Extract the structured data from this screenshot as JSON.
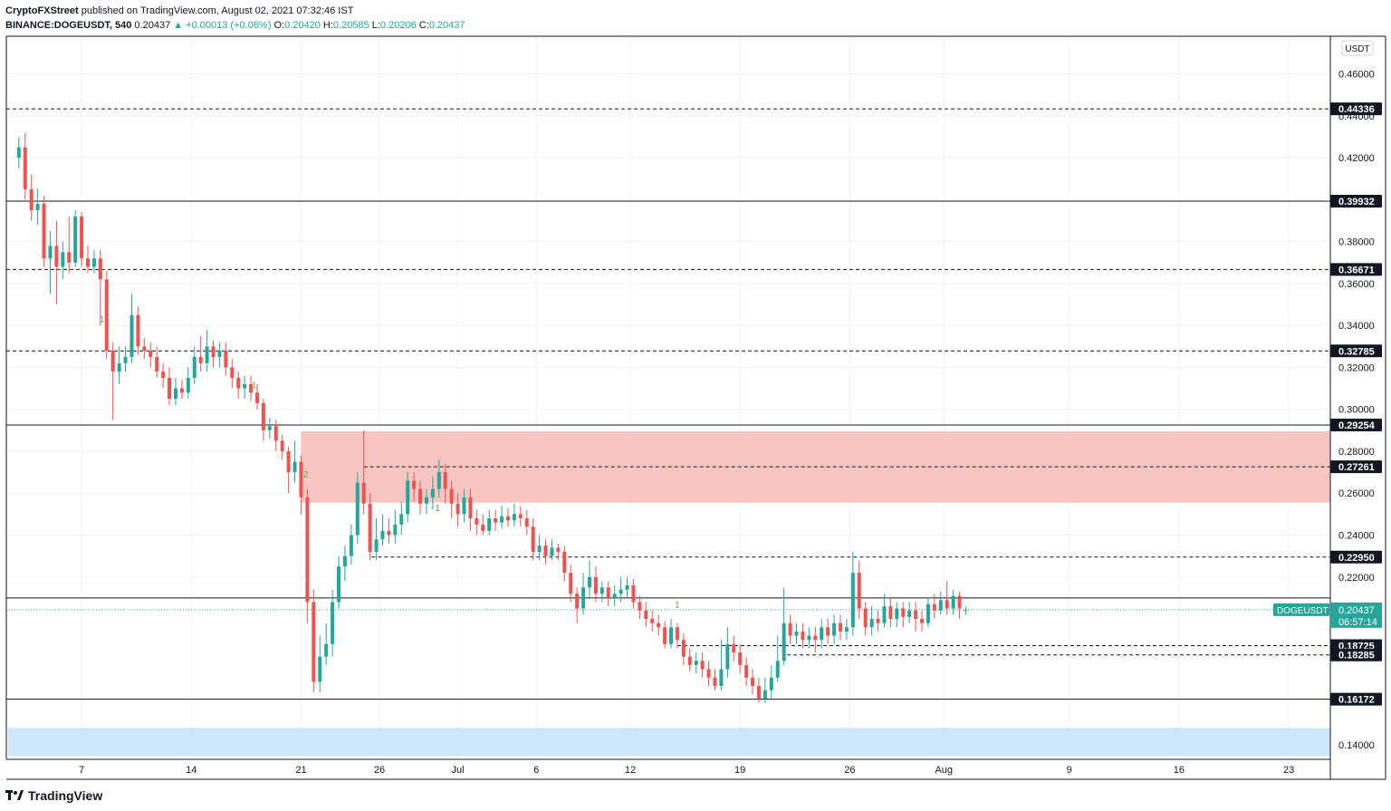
{
  "header": {
    "author": "CryptoFXStreet",
    "published": "published on TradingView.com, August 02, 2021 07:32:46 IST",
    "symbol": "BINANCE:DOGEUSDT, 540",
    "last": "0.20437",
    "change": "▲ +0.00013 (+0.06%)",
    "o_label": "O:",
    "o_value": "0.20420",
    "h_label": "H:",
    "h_value": "0.20585",
    "l_label": "L:",
    "l_value": "0.20206",
    "c_label": "C:",
    "c_value": "0.20437"
  },
  "footer": {
    "brand": "TradingView"
  },
  "chart_data": {
    "type": "candlestick",
    "currency_label": "USDT",
    "ylim": [
      0.133,
      0.478
    ],
    "y_ticks": [
      "0.46000",
      "0.44000",
      "0.42000",
      "0.38000",
      "0.36000",
      "0.34000",
      "0.32000",
      "0.30000",
      "0.28000",
      "0.26000",
      "0.24000",
      "0.22000",
      "0.14000"
    ],
    "x_tick_labels": [
      {
        "label": "7",
        "day": 7
      },
      {
        "label": "14",
        "day": 14
      },
      {
        "label": "21",
        "day": 21
      },
      {
        "label": "26",
        "day": 26
      },
      {
        "label": "Jul",
        "day": 31
      },
      {
        "label": "6",
        "day": 36
      },
      {
        "label": "12",
        "day": 42
      },
      {
        "label": "19",
        "day": 49
      },
      {
        "label": "26",
        "day": 56
      },
      {
        "label": "Aug",
        "day": 62
      },
      {
        "label": "9",
        "day": 70
      },
      {
        "label": "16",
        "day": 77
      },
      {
        "label": "23",
        "day": 84
      }
    ],
    "levels": [
      {
        "value": 0.44336,
        "label": "0.44336",
        "style": "dashed"
      },
      {
        "value": 0.39932,
        "label": "0.39932",
        "style": "solid"
      },
      {
        "value": 0.36671,
        "label": "0.36671",
        "style": "dashed"
      },
      {
        "value": 0.32785,
        "label": "0.32785",
        "style": "dashed"
      },
      {
        "value": 0.29254,
        "label": "0.29254",
        "style": "solid"
      },
      {
        "value": 0.27261,
        "label": "0.27261",
        "style": "dashed",
        "from_day": 25
      },
      {
        "value": 0.2295,
        "label": "0.22950",
        "style": "dashed",
        "from_day": 25.5
      },
      {
        "value": 0.21,
        "label": "",
        "style": "solid"
      },
      {
        "value": 0.18725,
        "label": "0.18725",
        "style": "dashed",
        "from_day": 45
      },
      {
        "value": 0.18285,
        "label": "0.18285",
        "style": "dashed",
        "from_day": 52
      },
      {
        "value": 0.16172,
        "label": "0.16172",
        "style": "solid"
      }
    ],
    "zones": [
      {
        "from": 0.2555,
        "to": 0.2895,
        "color": "#f7c5c2",
        "start_day": 21
      },
      {
        "from": 0.1345,
        "to": 0.148,
        "color": "#cfe6fb",
        "start_day": 2.3
      }
    ],
    "current": {
      "symbol": "DOGEUSDT",
      "price": "0.20437",
      "countdown": "06:57:14",
      "value": 0.20437
    },
    "markers": [
      {
        "label": "1",
        "day": 8.3,
        "value": 0.3415
      },
      {
        "label": "1",
        "day": 18.0,
        "value": 0.31
      },
      {
        "label": "2",
        "day": 21.3,
        "value": 0.2675
      },
      {
        "label": "1",
        "day": 29.7,
        "value": 0.2515
      },
      {
        "label": "1",
        "day": 45.0,
        "value": 0.2055
      }
    ],
    "candles": [
      [
        3.0,
        0.42,
        0.425,
        0.43,
        0.415
      ],
      [
        3.4,
        0.425,
        0.405,
        0.432,
        0.4
      ],
      [
        3.8,
        0.405,
        0.395,
        0.412,
        0.39
      ],
      [
        4.2,
        0.395,
        0.398,
        0.405,
        0.388
      ],
      [
        4.6,
        0.398,
        0.372,
        0.402,
        0.368
      ],
      [
        5.0,
        0.372,
        0.378,
        0.385,
        0.355
      ],
      [
        5.4,
        0.378,
        0.368,
        0.39,
        0.35
      ],
      [
        5.8,
        0.368,
        0.375,
        0.38,
        0.362
      ],
      [
        6.2,
        0.375,
        0.37,
        0.392,
        0.365
      ],
      [
        6.6,
        0.37,
        0.392,
        0.395,
        0.368
      ],
      [
        7.0,
        0.392,
        0.372,
        0.394,
        0.368
      ],
      [
        7.4,
        0.372,
        0.368,
        0.378,
        0.365
      ],
      [
        7.8,
        0.368,
        0.372,
        0.376,
        0.365
      ],
      [
        8.2,
        0.372,
        0.362,
        0.376,
        0.34
      ],
      [
        8.6,
        0.362,
        0.328,
        0.366,
        0.324
      ],
      [
        9.0,
        0.328,
        0.318,
        0.332,
        0.295
      ],
      [
        9.4,
        0.318,
        0.322,
        0.33,
        0.312
      ],
      [
        9.8,
        0.322,
        0.325,
        0.33,
        0.318
      ],
      [
        10.2,
        0.325,
        0.345,
        0.355,
        0.322
      ],
      [
        10.6,
        0.345,
        0.33,
        0.349,
        0.326
      ],
      [
        11.0,
        0.33,
        0.328,
        0.334,
        0.324
      ],
      [
        11.4,
        0.328,
        0.325,
        0.332,
        0.32
      ],
      [
        11.8,
        0.325,
        0.318,
        0.33,
        0.315
      ],
      [
        12.2,
        0.318,
        0.315,
        0.322,
        0.31
      ],
      [
        12.6,
        0.315,
        0.305,
        0.32,
        0.302
      ],
      [
        13.0,
        0.305,
        0.31,
        0.315,
        0.302
      ],
      [
        13.4,
        0.31,
        0.308,
        0.314,
        0.305
      ],
      [
        13.8,
        0.308,
        0.315,
        0.32,
        0.305
      ],
      [
        14.2,
        0.315,
        0.325,
        0.33,
        0.312
      ],
      [
        14.6,
        0.325,
        0.322,
        0.335,
        0.318
      ],
      [
        15.0,
        0.322,
        0.33,
        0.338,
        0.318
      ],
      [
        15.4,
        0.33,
        0.325,
        0.333,
        0.32
      ],
      [
        15.8,
        0.325,
        0.328,
        0.332,
        0.32
      ],
      [
        16.2,
        0.328,
        0.32,
        0.332,
        0.316
      ],
      [
        16.6,
        0.32,
        0.315,
        0.324,
        0.31
      ],
      [
        17.0,
        0.315,
        0.31,
        0.318,
        0.305
      ],
      [
        17.4,
        0.31,
        0.312,
        0.316,
        0.305
      ],
      [
        17.8,
        0.312,
        0.308,
        0.316,
        0.304
      ],
      [
        18.2,
        0.308,
        0.303,
        0.312,
        0.3
      ],
      [
        18.6,
        0.303,
        0.29,
        0.305,
        0.285
      ],
      [
        19.0,
        0.29,
        0.292,
        0.296,
        0.286
      ],
      [
        19.4,
        0.292,
        0.285,
        0.295,
        0.28
      ],
      [
        19.8,
        0.285,
        0.28,
        0.288,
        0.276
      ],
      [
        20.2,
        0.28,
        0.27,
        0.282,
        0.26
      ],
      [
        20.6,
        0.27,
        0.275,
        0.285,
        0.265
      ],
      [
        21.0,
        0.275,
        0.258,
        0.278,
        0.25
      ],
      [
        21.4,
        0.258,
        0.208,
        0.262,
        0.198
      ],
      [
        21.8,
        0.208,
        0.17,
        0.214,
        0.165
      ],
      [
        22.2,
        0.17,
        0.182,
        0.192,
        0.165
      ],
      [
        22.6,
        0.182,
        0.188,
        0.198,
        0.178
      ],
      [
        23.0,
        0.188,
        0.208,
        0.214,
        0.182
      ],
      [
        23.4,
        0.208,
        0.225,
        0.23,
        0.205
      ],
      [
        23.8,
        0.225,
        0.23,
        0.235,
        0.218
      ],
      [
        24.2,
        0.23,
        0.24,
        0.245,
        0.226
      ],
      [
        24.6,
        0.24,
        0.265,
        0.27,
        0.236
      ],
      [
        25.0,
        0.265,
        0.255,
        0.29,
        0.25
      ],
      [
        25.4,
        0.255,
        0.232,
        0.26,
        0.228
      ],
      [
        25.8,
        0.232,
        0.238,
        0.248,
        0.228
      ],
      [
        26.2,
        0.238,
        0.242,
        0.25,
        0.235
      ],
      [
        26.6,
        0.242,
        0.24,
        0.248,
        0.236
      ],
      [
        27.0,
        0.24,
        0.245,
        0.252,
        0.236
      ],
      [
        27.4,
        0.245,
        0.25,
        0.256,
        0.24
      ],
      [
        27.8,
        0.25,
        0.266,
        0.27,
        0.246
      ],
      [
        28.2,
        0.266,
        0.262,
        0.27,
        0.256
      ],
      [
        28.6,
        0.262,
        0.255,
        0.266,
        0.25
      ],
      [
        29.0,
        0.255,
        0.258,
        0.262,
        0.25
      ],
      [
        29.4,
        0.258,
        0.262,
        0.268,
        0.252
      ],
      [
        29.8,
        0.262,
        0.27,
        0.276,
        0.258
      ],
      [
        30.2,
        0.27,
        0.262,
        0.274,
        0.255
      ],
      [
        30.6,
        0.262,
        0.255,
        0.266,
        0.248
      ],
      [
        31.0,
        0.255,
        0.25,
        0.26,
        0.244
      ],
      [
        31.4,
        0.25,
        0.258,
        0.262,
        0.246
      ],
      [
        31.8,
        0.258,
        0.248,
        0.262,
        0.242
      ],
      [
        32.2,
        0.248,
        0.245,
        0.252,
        0.24
      ],
      [
        32.6,
        0.245,
        0.242,
        0.25,
        0.24
      ],
      [
        33.0,
        0.242,
        0.248,
        0.252,
        0.24
      ],
      [
        33.4,
        0.248,
        0.246,
        0.252,
        0.242
      ],
      [
        33.8,
        0.246,
        0.249,
        0.254,
        0.243
      ],
      [
        34.2,
        0.249,
        0.247,
        0.253,
        0.244
      ],
      [
        34.6,
        0.247,
        0.25,
        0.255,
        0.244
      ],
      [
        35.0,
        0.25,
        0.248,
        0.254,
        0.244
      ],
      [
        35.4,
        0.248,
        0.244,
        0.252,
        0.24
      ],
      [
        35.8,
        0.244,
        0.232,
        0.248,
        0.228
      ],
      [
        36.2,
        0.232,
        0.235,
        0.24,
        0.228
      ],
      [
        36.6,
        0.235,
        0.23,
        0.238,
        0.226
      ],
      [
        37.0,
        0.23,
        0.234,
        0.238,
        0.228
      ],
      [
        37.4,
        0.234,
        0.232,
        0.236,
        0.228
      ],
      [
        37.8,
        0.232,
        0.222,
        0.235,
        0.218
      ],
      [
        38.2,
        0.222,
        0.212,
        0.226,
        0.208
      ],
      [
        38.6,
        0.212,
        0.205,
        0.215,
        0.198
      ],
      [
        39.0,
        0.205,
        0.215,
        0.222,
        0.202
      ],
      [
        39.4,
        0.215,
        0.22,
        0.228,
        0.21
      ],
      [
        39.8,
        0.22,
        0.212,
        0.225,
        0.208
      ],
      [
        40.2,
        0.212,
        0.215,
        0.218,
        0.208
      ],
      [
        40.6,
        0.215,
        0.21,
        0.218,
        0.206
      ],
      [
        41.0,
        0.21,
        0.212,
        0.216,
        0.206
      ],
      [
        41.4,
        0.212,
        0.214,
        0.22,
        0.208
      ],
      [
        41.8,
        0.214,
        0.216,
        0.22,
        0.21
      ],
      [
        42.2,
        0.216,
        0.208,
        0.219,
        0.205
      ],
      [
        42.6,
        0.208,
        0.204,
        0.211,
        0.2
      ],
      [
        43.0,
        0.204,
        0.2,
        0.208,
        0.196
      ],
      [
        43.4,
        0.2,
        0.198,
        0.204,
        0.194
      ],
      [
        43.8,
        0.198,
        0.196,
        0.202,
        0.192
      ],
      [
        44.2,
        0.196,
        0.188,
        0.199,
        0.186
      ],
      [
        44.6,
        0.188,
        0.196,
        0.2,
        0.186
      ],
      [
        45.0,
        0.196,
        0.19,
        0.198,
        0.186
      ],
      [
        45.4,
        0.19,
        0.182,
        0.193,
        0.178
      ],
      [
        45.8,
        0.182,
        0.178,
        0.186,
        0.175
      ],
      [
        46.2,
        0.178,
        0.18,
        0.184,
        0.174
      ],
      [
        46.6,
        0.18,
        0.176,
        0.184,
        0.172
      ],
      [
        47.0,
        0.176,
        0.172,
        0.18,
        0.168
      ],
      [
        47.4,
        0.172,
        0.168,
        0.176,
        0.166
      ],
      [
        47.8,
        0.168,
        0.176,
        0.19,
        0.166
      ],
      [
        48.2,
        0.176,
        0.188,
        0.196,
        0.172
      ],
      [
        48.6,
        0.188,
        0.184,
        0.192,
        0.18
      ],
      [
        49.0,
        0.184,
        0.178,
        0.188,
        0.174
      ],
      [
        49.4,
        0.178,
        0.172,
        0.182,
        0.168
      ],
      [
        49.8,
        0.172,
        0.168,
        0.176,
        0.164
      ],
      [
        50.2,
        0.168,
        0.162,
        0.172,
        0.16
      ],
      [
        50.6,
        0.162,
        0.166,
        0.172,
        0.16
      ],
      [
        51.0,
        0.166,
        0.172,
        0.178,
        0.162
      ],
      [
        51.4,
        0.172,
        0.18,
        0.192,
        0.17
      ],
      [
        51.8,
        0.18,
        0.198,
        0.215,
        0.178
      ],
      [
        52.2,
        0.198,
        0.192,
        0.202,
        0.188
      ],
      [
        52.6,
        0.192,
        0.194,
        0.198,
        0.188
      ],
      [
        53.0,
        0.194,
        0.19,
        0.198,
        0.186
      ],
      [
        53.4,
        0.19,
        0.192,
        0.196,
        0.186
      ],
      [
        53.8,
        0.192,
        0.19,
        0.196,
        0.184
      ],
      [
        54.2,
        0.19,
        0.196,
        0.2,
        0.186
      ],
      [
        54.6,
        0.196,
        0.192,
        0.2,
        0.188
      ],
      [
        55.0,
        0.192,
        0.198,
        0.202,
        0.188
      ],
      [
        55.4,
        0.198,
        0.194,
        0.202,
        0.19
      ],
      [
        55.8,
        0.194,
        0.196,
        0.2,
        0.19
      ],
      [
        56.2,
        0.196,
        0.222,
        0.232,
        0.192
      ],
      [
        56.6,
        0.222,
        0.205,
        0.228,
        0.2
      ],
      [
        57.0,
        0.205,
        0.196,
        0.208,
        0.192
      ],
      [
        57.4,
        0.196,
        0.2,
        0.206,
        0.192
      ],
      [
        57.8,
        0.2,
        0.198,
        0.204,
        0.194
      ],
      [
        58.2,
        0.198,
        0.206,
        0.212,
        0.196
      ],
      [
        58.6,
        0.206,
        0.2,
        0.21,
        0.196
      ],
      [
        59.0,
        0.2,
        0.205,
        0.208,
        0.196
      ],
      [
        59.4,
        0.205,
        0.201,
        0.208,
        0.196
      ],
      [
        59.8,
        0.201,
        0.204,
        0.208,
        0.198
      ],
      [
        60.2,
        0.204,
        0.2,
        0.208,
        0.194
      ],
      [
        60.6,
        0.2,
        0.198,
        0.204,
        0.194
      ],
      [
        61.0,
        0.198,
        0.207,
        0.21,
        0.196
      ],
      [
        61.4,
        0.207,
        0.204,
        0.212,
        0.2
      ],
      [
        61.8,
        0.204,
        0.209,
        0.213,
        0.202
      ],
      [
        62.2,
        0.209,
        0.205,
        0.218,
        0.202
      ],
      [
        62.6,
        0.205,
        0.211,
        0.214,
        0.202
      ],
      [
        63.0,
        0.211,
        0.205,
        0.213,
        0.2
      ],
      [
        63.4,
        0.2042,
        0.20437,
        0.20585,
        0.20206
      ]
    ]
  }
}
